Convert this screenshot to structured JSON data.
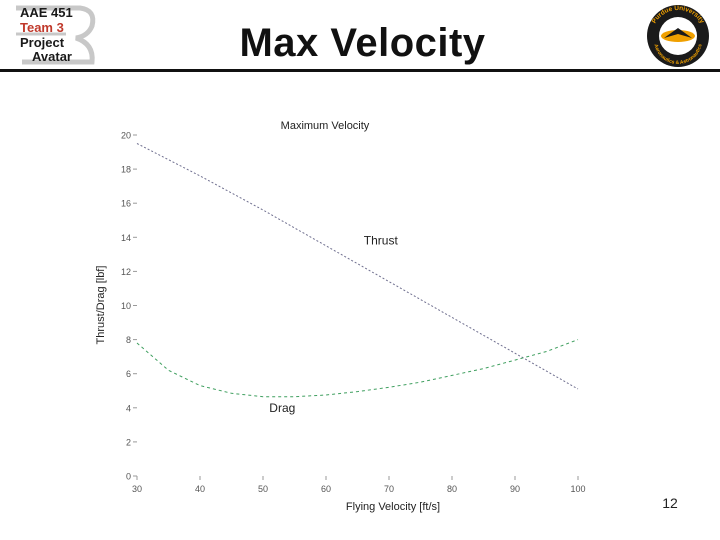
{
  "logo": {
    "line1": "AAE 451",
    "line2": "Team 3",
    "line3": "Project",
    "line4": "Avatar"
  },
  "slide": {
    "title": "Max Velocity",
    "page_number": "12"
  },
  "seal": {
    "top_text": "Purdue University",
    "bottom_text": "Aeronautics & Astronautics"
  },
  "colors": {
    "thrust": "#6f6f8f",
    "drag": "#3f9f5f",
    "axis": "#9a9a9a",
    "text": "#222222",
    "logo_red": "#c0392b"
  },
  "chart_data": {
    "type": "line",
    "title": "Maximum Velocity",
    "xlabel": "Flying Velocity [ft/s]",
    "ylabel": "Thrust/Drag [lbf]",
    "xlim": [
      30,
      100
    ],
    "ylim": [
      0,
      20
    ],
    "xticks": [
      30,
      40,
      50,
      60,
      70,
      80,
      90,
      100
    ],
    "yticks": [
      0,
      2,
      4,
      6,
      8,
      10,
      12,
      14,
      16,
      18,
      20
    ],
    "grid": false,
    "series": [
      {
        "name": "Thrust",
        "x": [
          30,
          40,
          50,
          60,
          70,
          80,
          90,
          100
        ],
        "y": [
          19.5,
          17.6,
          15.6,
          13.5,
          11.4,
          9.3,
          7.2,
          5.1
        ]
      },
      {
        "name": "Drag",
        "x": [
          30,
          35,
          40,
          45,
          50,
          55,
          60,
          65,
          70,
          75,
          80,
          85,
          90,
          95,
          100
        ],
        "y": [
          7.8,
          6.2,
          5.3,
          4.85,
          4.65,
          4.65,
          4.75,
          4.95,
          5.2,
          5.5,
          5.9,
          6.3,
          6.8,
          7.3,
          8.0
        ]
      }
    ],
    "annotations": [
      {
        "text": "Thrust",
        "x": 66,
        "y": 13.8
      },
      {
        "text": "Drag",
        "x": 51,
        "y": 4.0
      }
    ]
  }
}
